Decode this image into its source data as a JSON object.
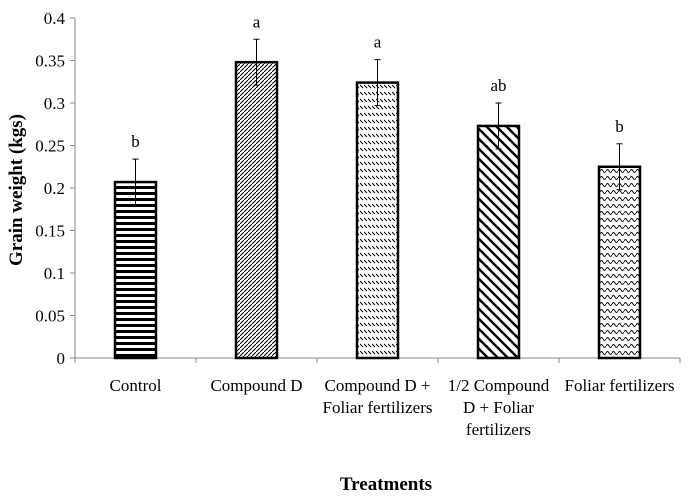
{
  "chart_data": {
    "type": "bar",
    "title": "",
    "xlabel": "Treatments",
    "ylabel": "Grain weight (kgs)",
    "ylim": [
      0,
      0.4
    ],
    "yticks": [
      "0",
      "0.05",
      "0.1",
      "0.15",
      "0.2",
      "0.25",
      "0.3",
      "0.35",
      "0.4"
    ],
    "categories": [
      [
        "Control"
      ],
      [
        "Compound D"
      ],
      [
        "Compound D +",
        "Foliar fertilizers"
      ],
      [
        "1/2 Compound",
        "D + Foliar",
        "fertilizers"
      ],
      [
        "Foliar fertilizers"
      ]
    ],
    "values": [
      0.207,
      0.348,
      0.324,
      0.273,
      0.225
    ],
    "errors": [
      0.027,
      0.027,
      0.027,
      0.027,
      0.027
    ],
    "significance_letters": [
      "b",
      "a",
      "a",
      "ab",
      "b"
    ],
    "patterns": [
      "horizontal-lines",
      "fine-diagonal",
      "dashed-diagonal",
      "wide-diagonal",
      "wave"
    ],
    "grid": false,
    "legend": "none"
  }
}
